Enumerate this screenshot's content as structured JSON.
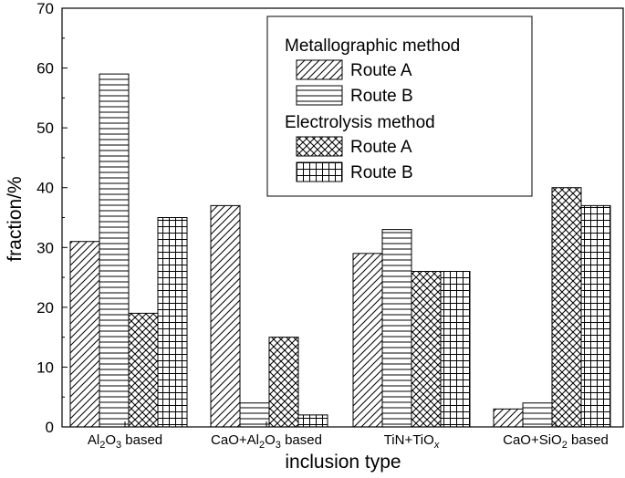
{
  "chart_data": {
    "type": "bar",
    "xlabel": "inclusion type",
    "ylabel": "fraction/%",
    "ylim": [
      0,
      70
    ],
    "yticks": [
      0,
      10,
      20,
      30,
      40,
      50,
      60,
      70
    ],
    "grid": false,
    "legend_position": "top-right",
    "categories": [
      {
        "main": "Al",
        "sub1": "2",
        "mid": "O",
        "sub2": "3",
        "tail": " based"
      },
      {
        "main": "CaO+Al",
        "sub1": "2",
        "mid": "O",
        "sub2": "3",
        "tail": " based"
      },
      {
        "main": "TiN+TiO",
        "sub1": "x",
        "mid": "",
        "sub2": "",
        "tail": ""
      },
      {
        "main": "CaO+SiO",
        "sub1": "2",
        "mid": " based",
        "sub2": "",
        "tail": ""
      }
    ],
    "legend": {
      "groups": [
        {
          "title": "Metallographic method",
          "entries": [
            "Route A",
            "Route B"
          ]
        },
        {
          "title": "Electrolysis method",
          "entries": [
            "Route A",
            "Route B"
          ]
        }
      ]
    },
    "series": [
      {
        "pattern": "diag",
        "values": [
          31,
          37,
          29,
          3
        ]
      },
      {
        "pattern": "hlines",
        "values": [
          59,
          4,
          33,
          4
        ]
      },
      {
        "pattern": "crosshatch",
        "values": [
          19,
          15,
          26,
          40
        ]
      },
      {
        "pattern": "grid",
        "values": [
          35,
          2,
          26,
          37
        ]
      }
    ]
  }
}
